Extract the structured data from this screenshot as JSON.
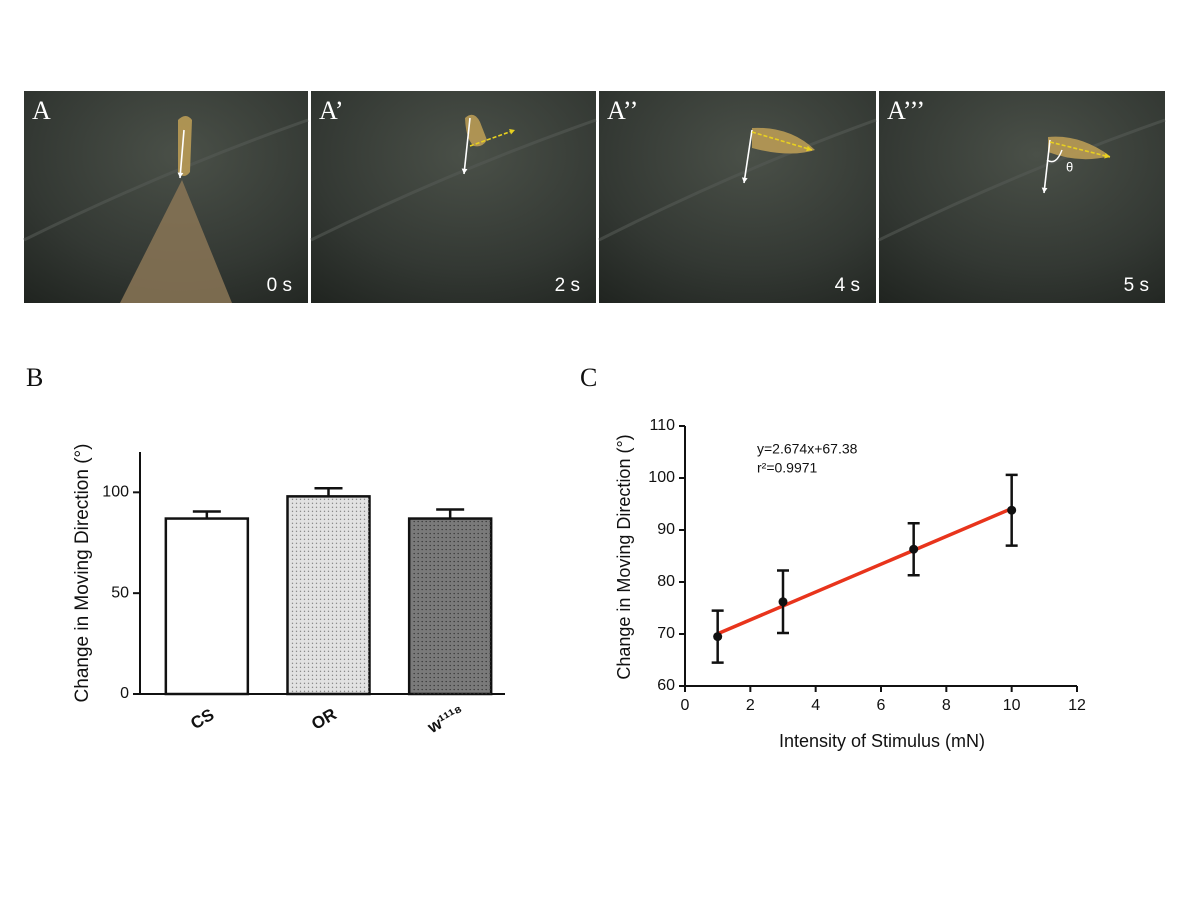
{
  "photos": [
    {
      "label": "A",
      "time": "0 s"
    },
    {
      "label": "A’",
      "time": "2 s"
    },
    {
      "label": "A’’",
      "time": "4 s"
    },
    {
      "label": "A’’’",
      "time": "5 s",
      "angle_label": "θ"
    }
  ],
  "chart_data": [
    {
      "type": "bar",
      "panel": "B",
      "y_label": "Change in Moving Direction (°)",
      "categories": [
        "CS",
        "OR",
        "w¹¹¹⁸"
      ],
      "values": [
        87,
        98,
        87
      ],
      "errors": [
        3.5,
        4,
        4.5
      ],
      "colors": [
        "#ffffff",
        "#e2e2e2",
        "#7a7a7a"
      ],
      "ylim": [
        0,
        120
      ],
      "yticks": [
        0,
        50,
        100
      ]
    },
    {
      "type": "scatter",
      "panel": "C",
      "y_label": "Change in Moving Direction (°)",
      "x_label": "Intensity of Stimulus (mN)",
      "annotations": [
        "y=2.674x+67.38",
        "r²=0.9971"
      ],
      "x": [
        1,
        3,
        7,
        10
      ],
      "values": [
        69.5,
        76.2,
        86.3,
        93.8
      ],
      "errors": [
        5,
        6,
        5,
        6.8
      ],
      "point_color": "#111111",
      "fit_line": {
        "color": "#e8341c",
        "x": [
          1,
          10
        ],
        "values": [
          70.05,
          94.12
        ]
      },
      "xlim": [
        0,
        12
      ],
      "xticks": [
        0,
        2,
        4,
        6,
        8,
        10,
        12
      ],
      "ylim": [
        60,
        110
      ],
      "yticks": [
        60,
        70,
        80,
        90,
        100,
        110
      ]
    }
  ]
}
